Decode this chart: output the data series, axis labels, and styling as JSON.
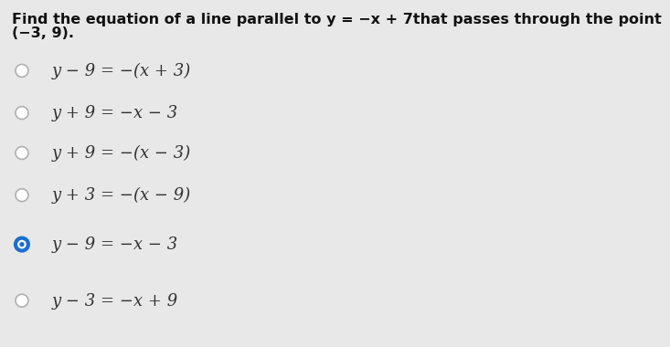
{
  "background_color": "#e8e8e8",
  "title_line1": "Find the equation of a line parallel to y = −x + 7that passes through the point",
  "title_line2": "(−3, 9).",
  "title_fontsize": 11.5,
  "options": [
    {
      "label": "y − 9 = −(x + 3)",
      "selected": false
    },
    {
      "label": "y + 9 = −x − 3",
      "selected": false
    },
    {
      "label": "y + 9 = −(x − 3)",
      "selected": false
    },
    {
      "label": "y + 3 = −(x − 9)",
      "selected": false
    },
    {
      "label": "y − 9 = −x − 3",
      "selected": true
    },
    {
      "label": "y − 3 = −x + 9",
      "selected": false
    }
  ],
  "option_fontsize": 13,
  "circle_color_empty": "#b0b0b0",
  "circle_color_selected_ring": "#1a6fcf",
  "text_color": "#333333",
  "title_color": "#111111",
  "title_bold": true
}
